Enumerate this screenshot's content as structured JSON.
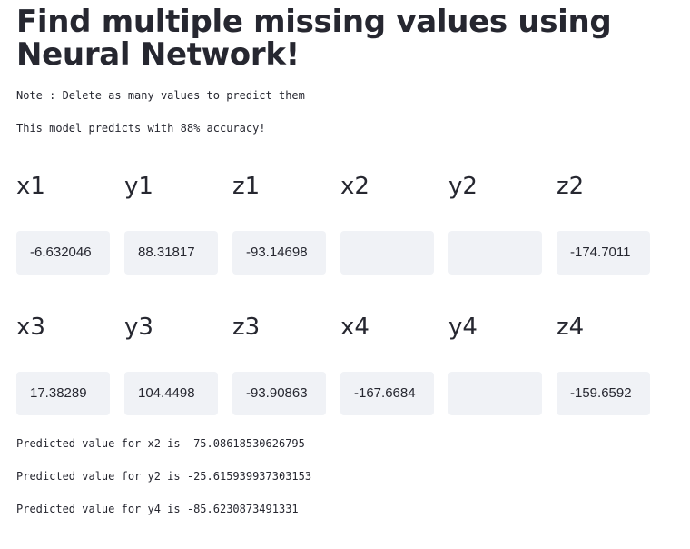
{
  "title": "Find multiple missing values using Neural Network!",
  "note": "Note : Delete as many values to predict them",
  "accuracy": "This model predicts with 88% accuracy!",
  "row1": [
    {
      "label": "x1",
      "value": "-6.632046"
    },
    {
      "label": "y1",
      "value": "88.31817"
    },
    {
      "label": "z1",
      "value": "-93.14698"
    },
    {
      "label": "x2",
      "value": ""
    },
    {
      "label": "y2",
      "value": ""
    },
    {
      "label": "z2",
      "value": "-174.7011"
    }
  ],
  "row2": [
    {
      "label": "x3",
      "value": "17.38289"
    },
    {
      "label": "y3",
      "value": "104.4498"
    },
    {
      "label": "z3",
      "value": "-93.90863"
    },
    {
      "label": "x4",
      "value": "-167.6684"
    },
    {
      "label": "y4",
      "value": ""
    },
    {
      "label": "z4",
      "value": "-159.6592"
    }
  ],
  "predictions": [
    "Predicted value for x2 is -75.08618530626795",
    "Predicted value for y2 is -25.615939937303153",
    "Predicted value for y4 is -85.6230873491331"
  ]
}
